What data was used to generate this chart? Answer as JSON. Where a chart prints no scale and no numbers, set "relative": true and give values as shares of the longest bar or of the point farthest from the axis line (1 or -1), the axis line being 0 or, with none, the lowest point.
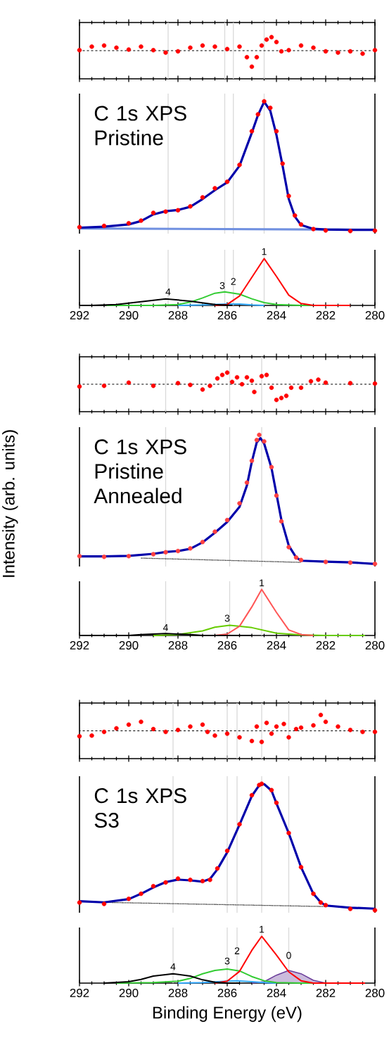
{
  "chart_data": [
    {
      "type": "scatter",
      "relative": true,
      "marker": "circle",
      "xlim": [
        292,
        280
      ],
      "xticks": [
        292,
        290,
        288,
        286,
        284,
        282,
        280
      ],
      "tick_labels": false,
      "ref_lines": [
        {
          "axis": "x",
          "value": 288.4,
          "color": "#d9d9d9"
        },
        {
          "axis": "x",
          "value": 286.1,
          "color": "#d9d9d9"
        },
        {
          "axis": "x",
          "value": 285.75,
          "color": "#d9d9d9"
        },
        {
          "axis": "x",
          "value": 284.5,
          "color": "#d9d9d9"
        },
        {
          "axis": "y",
          "value": 0,
          "color": "#000000",
          "line_style": "dashed"
        }
      ],
      "series": [
        {
          "type": "scatter",
          "color": "#ff0000",
          "x": [
            292,
            291.5,
            291,
            290.5,
            290,
            289.5,
            289,
            288.5,
            288,
            287.5,
            287,
            286.5,
            286,
            285.5,
            285.2,
            285,
            284.8,
            284.6,
            284.4,
            284.2,
            284,
            283.8,
            283.5,
            283,
            282.5,
            282,
            281.5,
            281,
            280.5,
            280
          ],
          "values": [
            0.03,
            0.25,
            0.32,
            0.18,
            0.07,
            0.25,
            0.03,
            -0.12,
            -0.04,
            0.18,
            0.32,
            0.25,
            0.1,
            0.25,
            -0.41,
            -1,
            -0.41,
            0.32,
            0.69,
            0.84,
            0.54,
            -0.04,
            0.03,
            0.32,
            0.18,
            -0.04,
            -0.12,
            -0.04,
            -0.19,
            0.03
          ]
        }
      ]
    },
    {
      "type": "line",
      "relative": true,
      "marker": "circle",
      "xlim": [
        292,
        280
      ],
      "xticks": [
        292,
        290,
        288,
        286,
        284,
        282,
        280
      ],
      "tick_labels": false,
      "title": "C 1s XPS",
      "subtitle": "Pristine",
      "ref_lines": [
        {
          "axis": "x",
          "value": 288.4,
          "color": "#d9d9d9"
        },
        {
          "axis": "x",
          "value": 286.1,
          "color": "#d9d9d9"
        },
        {
          "axis": "x",
          "value": 285.75,
          "color": "#d9d9d9"
        },
        {
          "axis": "x",
          "value": 284.5,
          "color": "#d9d9d9"
        }
      ],
      "series": [
        {
          "type": "line",
          "marker": "none",
          "color": "#7090e0",
          "x": [
            292,
            280
          ],
          "values": [
            0.02,
            0.01
          ]
        },
        {
          "type": "scatter",
          "color": "#ff0000",
          "x": [
            292,
            291,
            290,
            289.5,
            289,
            288.5,
            288,
            287.5,
            287,
            286.5,
            286,
            285.5,
            285,
            284.75,
            284.5,
            284.25,
            284,
            283.75,
            283.5,
            283.25,
            283,
            282.5,
            282,
            281,
            280
          ],
          "values": [
            0.03,
            0.04,
            0.06,
            0.08,
            0.14,
            0.15,
            0.16,
            0.19,
            0.26,
            0.33,
            0.38,
            0.51,
            0.77,
            0.9,
            1.0,
            0.95,
            0.77,
            0.52,
            0.27,
            0.12,
            0.05,
            0.015,
            0.005,
            0,
            0.003
          ]
        },
        {
          "type": "line",
          "marker": "none",
          "color": "#0000aa",
          "x": [
            292,
            291,
            290,
            289.5,
            289,
            288.5,
            288,
            287.5,
            287,
            286.5,
            286,
            285.5,
            285,
            284.75,
            284.5,
            284.25,
            284,
            283.75,
            283.5,
            283.25,
            283,
            282.5,
            282,
            281,
            280
          ],
          "values": [
            0.026,
            0.034,
            0.051,
            0.077,
            0.128,
            0.153,
            0.162,
            0.187,
            0.247,
            0.315,
            0.375,
            0.503,
            0.758,
            0.894,
            0.997,
            0.928,
            0.741,
            0.503,
            0.247,
            0.111,
            0.046,
            0.017,
            0.012,
            0.009,
            0.009
          ]
        }
      ]
    },
    {
      "type": "line",
      "relative": true,
      "xlim": [
        292,
        280
      ],
      "xticks": [
        292,
        290,
        288,
        286,
        284,
        282,
        280
      ],
      "tick_labels": "x",
      "ref_lines": [
        {
          "axis": "x",
          "value": 288.4,
          "color": "#d9d9d9"
        },
        {
          "axis": "x",
          "value": 286.1,
          "color": "#d9d9d9"
        },
        {
          "axis": "x",
          "value": 285.75,
          "color": "#d9d9d9"
        },
        {
          "axis": "x",
          "value": 284.5,
          "color": "#d9d9d9"
        }
      ],
      "annotations": [
        {
          "text": "4",
          "x": 288.4,
          "y": 0.2
        },
        {
          "text": "3",
          "x": 286.2,
          "y": 0.33
        },
        {
          "text": "2",
          "x": 285.75,
          "y": 0.42
        },
        {
          "text": "1",
          "x": 284.5,
          "y": 1.06
        }
      ],
      "series": [
        {
          "type": "line",
          "color": "#33aaff",
          "x": [
            288,
            287,
            286,
            285.5,
            285,
            284.5
          ],
          "values": [
            0,
            0.01,
            0.03,
            0.03,
            0.01,
            0
          ]
        },
        {
          "type": "line",
          "color": "#33cc33",
          "x": [
            290.9,
            289,
            288,
            287.5,
            287,
            286.5,
            286.1,
            285.5,
            285,
            284.5,
            284,
            283,
            281.4
          ],
          "values": [
            0,
            0.0,
            0.02,
            0.07,
            0.16,
            0.26,
            0.29,
            0.24,
            0.14,
            0.06,
            0.02,
            0,
            0
          ]
        },
        {
          "type": "line",
          "color": "#ff0000",
          "x": [
            286.5,
            286,
            285.5,
            285,
            284.5,
            284,
            283.5,
            283,
            282.5,
            281
          ],
          "values": [
            0.0,
            0.02,
            0.2,
            0.6,
            1,
            0.62,
            0.22,
            0.04,
            0.0,
            0
          ]
        },
        {
          "type": "line",
          "color": "#000000",
          "x": [
            292,
            291.5,
            290.5,
            289.5,
            288.5,
            287.5,
            286.5,
            285.8
          ],
          "values": [
            0,
            0,
            0.02,
            0.08,
            0.14,
            0.09,
            0.02,
            0
          ]
        }
      ]
    },
    {
      "type": "scatter",
      "relative": true,
      "marker": "circle",
      "xlim": [
        292,
        280
      ],
      "xticks": [
        292,
        290,
        288,
        286,
        284,
        282,
        280
      ],
      "tick_labels": false,
      "ref_lines": [
        {
          "axis": "x",
          "value": 288.5,
          "color": "#d9d9d9"
        },
        {
          "axis": "x",
          "value": 285.9,
          "color": "#d9d9d9"
        },
        {
          "axis": "x",
          "value": 284.6,
          "color": "#d9d9d9"
        },
        {
          "axis": "y",
          "value": 0,
          "color": "#000000",
          "line_style": "dashed"
        }
      ],
      "series": [
        {
          "type": "scatter",
          "color": "#ff0000",
          "x": [
            292,
            291,
            290,
            289,
            288,
            287.5,
            287,
            286.7,
            286.4,
            286.2,
            286,
            285.8,
            285.6,
            285.4,
            285.2,
            285,
            284.9,
            284.6,
            284.4,
            284.2,
            284,
            283.8,
            283.6,
            283.4,
            283,
            282.6,
            282.3,
            282,
            281,
            280
          ],
          "values": [
            -0.15,
            -0.1,
            0.1,
            -0.1,
            0.07,
            -0.04,
            -0.34,
            -0.1,
            0.37,
            0.59,
            0.74,
            0.15,
            0.44,
            0,
            0.44,
            0.22,
            -0.49,
            0.51,
            0.59,
            -0.22,
            -1,
            -0.88,
            -0.74,
            -0.22,
            -0.22,
            0.19,
            0.29,
            0.1,
            0.07,
            0.04
          ]
        }
      ]
    },
    {
      "type": "line",
      "relative": true,
      "marker": "circle",
      "xlim": [
        292,
        280
      ],
      "xticks": [
        292,
        290,
        288,
        286,
        284,
        282,
        280
      ],
      "tick_labels": false,
      "title": "C 1s XPS",
      "subtitle": "Pristine Annealed",
      "ylabel": "Intensity (arb. units)",
      "ref_lines": [
        {
          "axis": "x",
          "value": 288.5,
          "color": "#d9d9d9"
        },
        {
          "axis": "x",
          "value": 285.9,
          "color": "#d9d9d9"
        },
        {
          "axis": "x",
          "value": 284.6,
          "color": "#d9d9d9"
        }
      ],
      "series": [
        {
          "type": "line",
          "marker": "none",
          "line_style": "dotted",
          "color": "#000000",
          "x": [
            289.5,
            283
          ],
          "values": [
            0.045,
            0.012
          ]
        },
        {
          "type": "scatter",
          "color": "#ff4040",
          "x": [
            292,
            291,
            290,
            289,
            288.5,
            288,
            287.5,
            287,
            286.5,
            286,
            285.5,
            285.2,
            285,
            284.8,
            284.7,
            284.5,
            284.2,
            284,
            283.8,
            283.5,
            283.2,
            283,
            282,
            281,
            280
          ],
          "values": [
            0.06,
            0.055,
            0.06,
            0.075,
            0.09,
            0.1,
            0.12,
            0.17,
            0.25,
            0.34,
            0.47,
            0.63,
            0.8,
            0.96,
            1.0,
            0.95,
            0.75,
            0.53,
            0.33,
            0.13,
            0.05,
            0.03,
            0.015,
            0.01,
            0.0
          ]
        },
        {
          "type": "line",
          "marker": "none",
          "color": "#0000aa",
          "x": [
            292,
            291,
            290,
            289,
            288.5,
            288,
            287.5,
            287,
            286.5,
            286,
            285.5,
            285.2,
            285,
            284.8,
            284.65,
            284.5,
            284.2,
            284,
            283.8,
            283.5,
            283.2,
            283,
            282,
            281,
            280
          ],
          "values": [
            0.058,
            0.058,
            0.062,
            0.078,
            0.092,
            0.1,
            0.117,
            0.167,
            0.242,
            0.325,
            0.442,
            0.608,
            0.792,
            0.942,
            0.975,
            0.933,
            0.742,
            0.542,
            0.342,
            0.142,
            0.05,
            0.025,
            0.017,
            0.012,
            0.0
          ]
        }
      ]
    },
    {
      "type": "line",
      "relative": true,
      "xlim": [
        292,
        280
      ],
      "xticks": [
        292,
        290,
        288,
        286,
        284,
        282,
        280
      ],
      "tick_labels": "x",
      "ref_lines": [
        {
          "axis": "x",
          "value": 288.5,
          "color": "#d9d9d9"
        },
        {
          "axis": "x",
          "value": 285.9,
          "color": "#d9d9d9"
        },
        {
          "axis": "x",
          "value": 284.6,
          "color": "#d9d9d9"
        }
      ],
      "annotations": [
        {
          "text": "4",
          "x": 288.5,
          "y": 0.08
        },
        {
          "text": "3",
          "x": 286,
          "y": 0.28
        },
        {
          "text": "1",
          "x": 284.6,
          "y": 1.05
        }
      ],
      "series": [
        {
          "type": "line",
          "color": "#66cc00",
          "x": [
            289,
            288,
            287,
            286.5,
            285.9,
            285,
            284.5,
            284,
            283,
            282,
            280.4
          ],
          "values": [
            0,
            0.02,
            0.1,
            0.18,
            0.22,
            0.17,
            0.11,
            0.05,
            0.01,
            0,
            0
          ]
        },
        {
          "type": "line",
          "color": "#ff5555",
          "x": [
            286.5,
            286,
            285.5,
            285,
            284.6,
            284,
            283.5,
            283,
            282.5
          ],
          "values": [
            0,
            0.03,
            0.2,
            0.62,
            1,
            0.5,
            0.12,
            0.02,
            0
          ]
        },
        {
          "type": "line",
          "color": "#000000",
          "x": [
            292,
            290,
            289.5,
            288.5,
            287.5,
            287,
            285
          ],
          "values": [
            0,
            0,
            0.02,
            0.04,
            0.02,
            0,
            0
          ]
        }
      ]
    },
    {
      "type": "scatter",
      "relative": true,
      "marker": "circle",
      "xlim": [
        292,
        280
      ],
      "xticks": [
        292,
        290,
        288,
        286,
        284,
        282,
        280
      ],
      "tick_labels": false,
      "ref_lines": [
        {
          "axis": "x",
          "value": 288.2,
          "color": "#d9d9d9"
        },
        {
          "axis": "x",
          "value": 286,
          "color": "#d9d9d9"
        },
        {
          "axis": "x",
          "value": 285.6,
          "color": "#d9d9d9"
        },
        {
          "axis": "x",
          "value": 284.6,
          "color": "#d9d9d9"
        },
        {
          "axis": "x",
          "value": 283.5,
          "color": "#d9d9d9"
        },
        {
          "axis": "y",
          "value": 0,
          "color": "#000000",
          "line_style": "dashed"
        }
      ],
      "series": [
        {
          "type": "scatter",
          "color": "#ff0000",
          "x": [
            292,
            291.5,
            291,
            290.5,
            290,
            289.5,
            289,
            288.5,
            288,
            287.5,
            287,
            286.8,
            286.5,
            286,
            285.5,
            285,
            284.8,
            284.6,
            284.4,
            284.2,
            284,
            283.7,
            283.5,
            283.2,
            283,
            282.5,
            282.2,
            282,
            281.5,
            281,
            280.5,
            280
          ],
          "values": [
            -0.34,
            -0.3,
            -0.07,
            0.16,
            0.39,
            0.57,
            0.11,
            -0.07,
            0.05,
            0.27,
            0.39,
            -0.07,
            -0.3,
            -0.18,
            -0.41,
            -0.64,
            0.27,
            -0.7,
            0.5,
            -0.18,
            0.27,
            0.43,
            -0.41,
            0.11,
            0.2,
            0.34,
            1,
            0.57,
            0.27,
            0.05,
            -0.07,
            -0.07
          ]
        }
      ]
    },
    {
      "type": "line",
      "relative": true,
      "marker": "circle",
      "xlim": [
        292,
        280
      ],
      "xticks": [
        292,
        290,
        288,
        286,
        284,
        282,
        280
      ],
      "tick_labels": false,
      "title": "C 1s XPS",
      "subtitle": "S3",
      "ref_lines": [
        {
          "axis": "x",
          "value": 288.2,
          "color": "#d9d9d9"
        },
        {
          "axis": "x",
          "value": 286,
          "color": "#d9d9d9"
        },
        {
          "axis": "x",
          "value": 285.6,
          "color": "#d9d9d9"
        },
        {
          "axis": "x",
          "value": 284.6,
          "color": "#d9d9d9"
        },
        {
          "axis": "x",
          "value": 283.5,
          "color": "#d9d9d9"
        }
      ],
      "series": [
        {
          "type": "line",
          "marker": "none",
          "line_style": "dotted",
          "color": "#000000",
          "x": [
            291,
            282
          ],
          "values": [
            0.062,
            0.029
          ]
        },
        {
          "type": "scatter",
          "color": "#ff0000",
          "x": [
            292,
            291,
            290,
            289.5,
            289,
            288.5,
            288,
            287.5,
            287,
            286.7,
            286.4,
            286,
            285.5,
            285,
            284.7,
            284.6,
            284.2,
            284,
            283.5,
            283,
            282.5,
            282.2,
            282,
            281,
            280
          ],
          "values": [
            0.06,
            0.05,
            0.09,
            0.13,
            0.19,
            0.22,
            0.25,
            0.24,
            0.23,
            0.24,
            0.33,
            0.47,
            0.68,
            0.91,
            0.99,
            1.0,
            0.95,
            0.85,
            0.61,
            0.34,
            0.13,
            0.06,
            0.04,
            0.01,
            0.0
          ]
        },
        {
          "type": "line",
          "marker": "none",
          "color": "#0000aa",
          "x": [
            292,
            291,
            290,
            289.5,
            289,
            288.5,
            288,
            287.5,
            287,
            286.7,
            286.4,
            286,
            285.5,
            285,
            284.7,
            284.5,
            284.2,
            284,
            283.5,
            283,
            282.5,
            282.2,
            282,
            281,
            280
          ],
          "values": [
            0.071,
            0.062,
            0.088,
            0.13,
            0.18,
            0.222,
            0.242,
            0.236,
            0.226,
            0.247,
            0.323,
            0.458,
            0.677,
            0.904,
            0.988,
            0.997,
            0.946,
            0.845,
            0.609,
            0.34,
            0.13,
            0.062,
            0.037,
            0.02,
            0.012
          ]
        }
      ]
    },
    {
      "type": "line",
      "relative": true,
      "xlim": [
        292,
        280
      ],
      "xticks": [
        292,
        290,
        288,
        286,
        284,
        282,
        280
      ],
      "tick_labels": "x",
      "xlabel": "Binding Energy (eV)",
      "ref_lines": [
        {
          "axis": "x",
          "value": 288.2,
          "color": "#d9d9d9"
        },
        {
          "axis": "x",
          "value": 286,
          "color": "#d9d9d9"
        },
        {
          "axis": "x",
          "value": 285.6,
          "color": "#d9d9d9"
        },
        {
          "axis": "x",
          "value": 284.6,
          "color": "#d9d9d9"
        },
        {
          "axis": "x",
          "value": 283.5,
          "color": "#d9d9d9"
        }
      ],
      "annotations": [
        {
          "text": "4",
          "x": 288.2,
          "y": 0.26
        },
        {
          "text": "3",
          "x": 286,
          "y": 0.38
        },
        {
          "text": "2",
          "x": 285.6,
          "y": 0.6
        },
        {
          "text": "1",
          "x": 284.6,
          "y": 1.06
        },
        {
          "text": "0",
          "x": 283.5,
          "y": 0.5
        }
      ],
      "series": [
        {
          "type": "area",
          "color": "#6a3d9a",
          "x": [
            285,
            284.5,
            284,
            283.5,
            283,
            282.5,
            282
          ],
          "values": [
            0,
            0.03,
            0.17,
            0.27,
            0.2,
            0.06,
            0
          ]
        },
        {
          "type": "line",
          "color": "#33aaff",
          "x": [
            288,
            287,
            286,
            285.6,
            285,
            284.5,
            284
          ],
          "values": [
            0,
            0.01,
            0.04,
            0.05,
            0.03,
            0.01,
            0
          ]
        },
        {
          "type": "line",
          "color": "#33cc33",
          "x": [
            290.5,
            289,
            288,
            287.5,
            287,
            286.5,
            286,
            285.5,
            285,
            284.5,
            284,
            283,
            281.5
          ],
          "values": [
            0,
            0.01,
            0.04,
            0.1,
            0.2,
            0.27,
            0.3,
            0.26,
            0.14,
            0.05,
            0.01,
            0,
            0
          ]
        },
        {
          "type": "line",
          "color": "#ff0000",
          "x": [
            286.5,
            286,
            285.5,
            285,
            284.6,
            284,
            283.5,
            283,
            282.5,
            280.4
          ],
          "values": [
            0.0,
            0.04,
            0.25,
            0.7,
            1,
            0.6,
            0.24,
            0.05,
            0,
            0
          ]
        },
        {
          "type": "line",
          "color": "#000000",
          "x": [
            291,
            290,
            289.5,
            289,
            288.2,
            287.5,
            287,
            286.5,
            286,
            285.5
          ],
          "values": [
            0,
            0.03,
            0.08,
            0.15,
            0.2,
            0.15,
            0.07,
            0.02,
            0,
            0
          ]
        }
      ]
    }
  ]
}
